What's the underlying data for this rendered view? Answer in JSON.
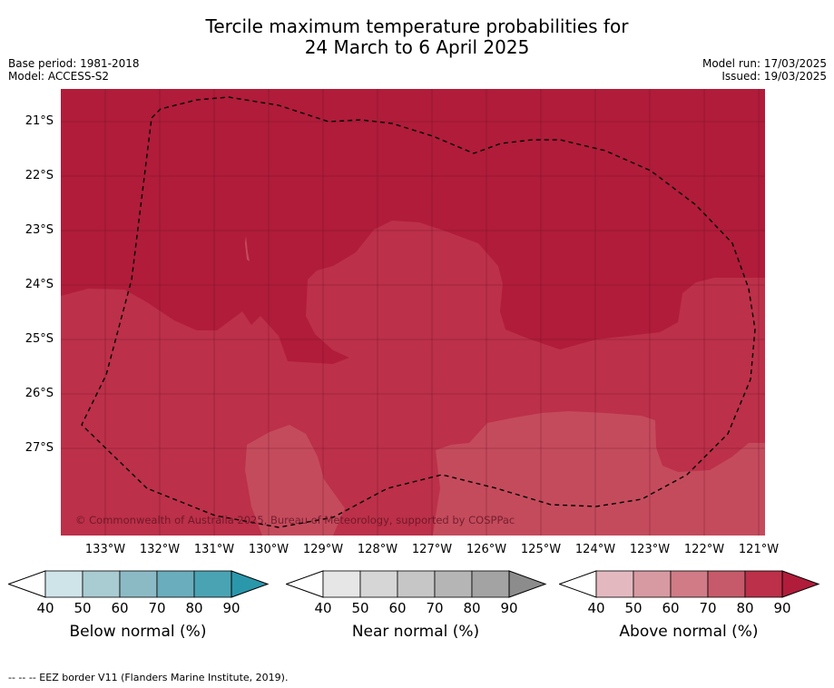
{
  "title_line1": "Tercile maximum temperature probabilities for",
  "title_line2": "24 March to 6 April 2025",
  "base_period": "Base period: 1981-2018",
  "model": "Model: ACCESS-S2",
  "model_run": "Model run: 17/03/2025",
  "issued": "Issued: 19/03/2025",
  "copyright": "© Commonwealth of Australia 2025, Bureau of Meteorology, supported by COSPPac",
  "lat_labels": [
    "21°S",
    "22°S",
    "23°S",
    "24°S",
    "25°S",
    "26°S",
    "27°S"
  ],
  "lon_labels": [
    "133°W",
    "132°W",
    "131°W",
    "130°W",
    "129°W",
    "128°W",
    "127°W",
    "126°W",
    "125°W",
    "124°W",
    "123°W",
    "122°W",
    "121°W"
  ],
  "colorbars": [
    {
      "label": "Below normal (%)",
      "ticks": [
        "40",
        "50",
        "60",
        "70",
        "80",
        "90"
      ],
      "colors": [
        "#ffffff",
        "#cfe4e9",
        "#a9cbd2",
        "#8bbac5",
        "#6aadbc",
        "#4aa3b3",
        "#2b97ab"
      ]
    },
    {
      "label": "Near normal (%)",
      "ticks": [
        "40",
        "50",
        "60",
        "70",
        "80",
        "90"
      ],
      "colors": [
        "#ffffff",
        "#e6e6e6",
        "#d6d6d6",
        "#c6c6c6",
        "#b5b5b5",
        "#a3a3a3",
        "#8c8c8c"
      ]
    },
    {
      "label": "Above normal (%)",
      "ticks": [
        "40",
        "50",
        "60",
        "70",
        "80",
        "90"
      ],
      "colors": [
        "#ffffff",
        "#e3b9bf",
        "#d89aa2",
        "#d07b86",
        "#c65a6a",
        "#bc3049",
        "#b01c3a"
      ]
    }
  ],
  "map_colors": {
    "above_80_90": "#b01c3a",
    "above_70_80": "#bc3049",
    "above_60_70": "#c44b5c"
  },
  "footnote": "--  --  -- EEZ border V11 (Flanders Marine Institute, 2019)."
}
